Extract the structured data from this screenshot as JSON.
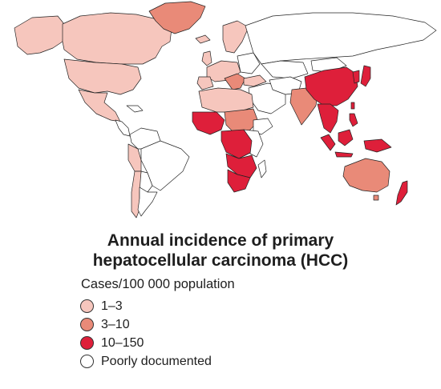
{
  "colors": {
    "low": "#f6c6bd",
    "mid": "#e98a78",
    "high": "#de1f3a",
    "none": "#ffffff",
    "outline": "#222222"
  },
  "legend": {
    "title_line1": "Annual incidence of primary",
    "title_line2": "hepatocellular carcinoma (HCC)",
    "subtitle": "Cases/100 000 population",
    "items": [
      {
        "label": "1–3",
        "color": "#f6c6bd"
      },
      {
        "label": "3–10",
        "color": "#e98a78"
      },
      {
        "label": "10–150",
        "color": "#de1f3a"
      },
      {
        "label": "Poorly documented",
        "color": "#ffffff"
      }
    ]
  }
}
